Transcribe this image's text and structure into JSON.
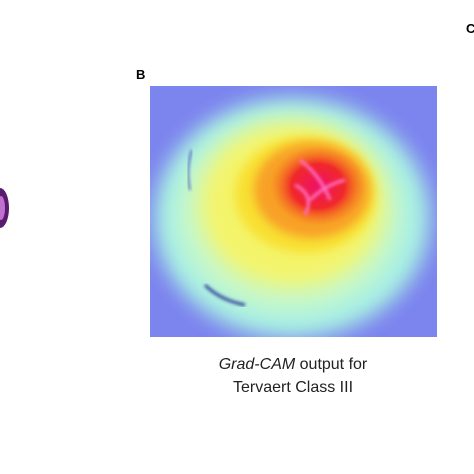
{
  "panels": [
    {
      "label": "B"
    },
    {
      "label": "C"
    }
  ],
  "caption": {
    "line1_emphasis": "Grad-CAM",
    "line1_rest": "output for",
    "line2": "Tervaert Class III"
  }
}
